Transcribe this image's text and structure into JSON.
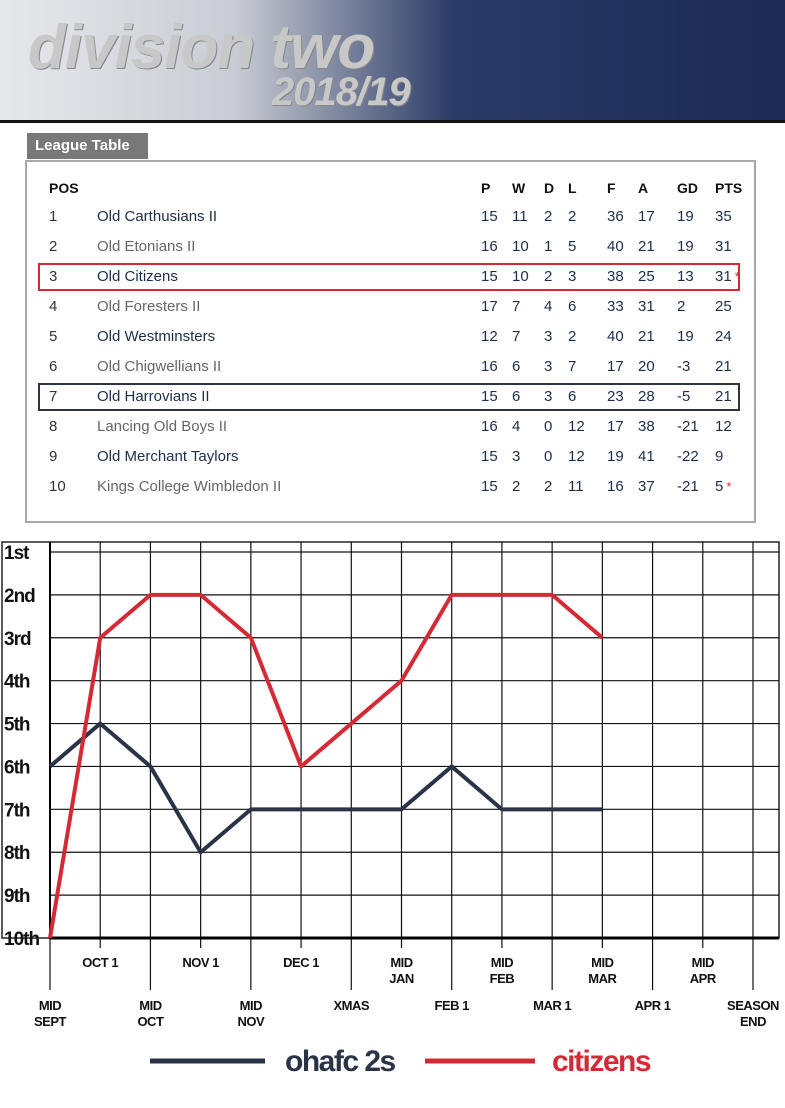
{
  "header": {
    "title": "division two",
    "season": "2018/19"
  },
  "table": {
    "tab": "League Table",
    "columns": [
      "POS",
      "P",
      "W",
      "D",
      "L",
      "F",
      "A",
      "GD",
      "PTS"
    ],
    "rows": [
      {
        "cells": [
          1,
          "Old Carthusians II",
          15,
          11,
          2,
          2,
          36,
          17,
          19,
          35
        ]
      },
      {
        "cells": [
          2,
          "Old Etonians II",
          16,
          10,
          1,
          5,
          40,
          21,
          19,
          31
        ]
      },
      {
        "cells": [
          3,
          "Old Citizens",
          15,
          10,
          2,
          3,
          38,
          25,
          13,
          31
        ],
        "note": "*",
        "highlight": "#d42a35"
      },
      {
        "cells": [
          4,
          "Old Foresters II",
          17,
          7,
          4,
          6,
          33,
          31,
          2,
          25
        ]
      },
      {
        "cells": [
          5,
          "Old Westminsters",
          12,
          7,
          3,
          2,
          40,
          21,
          19,
          24
        ]
      },
      {
        "cells": [
          6,
          "Old Chigwellians II",
          16,
          6,
          3,
          7,
          17,
          20,
          -3,
          21
        ]
      },
      {
        "cells": [
          7,
          "Old Harrovians II",
          15,
          6,
          3,
          6,
          23,
          28,
          -5,
          21
        ],
        "highlight": "#2b3347"
      },
      {
        "cells": [
          8,
          "Lancing Old Boys II",
          16,
          4,
          0,
          12,
          17,
          38,
          -21,
          12
        ]
      },
      {
        "cells": [
          9,
          "Old Merchant Taylors",
          15,
          3,
          0,
          12,
          19,
          41,
          -22,
          9
        ]
      },
      {
        "cells": [
          10,
          "Kings College Wimbledon II",
          15,
          2,
          2,
          11,
          16,
          37,
          -21,
          5
        ],
        "note": "*"
      }
    ]
  },
  "chart_data": {
    "type": "line",
    "categories": [
      "MID\nSEPT",
      "OCT 1",
      "MID\nOCT",
      "NOV 1",
      "MID\nNOV",
      "DEC 1",
      "XMAS",
      "MID\nJAN",
      "FEB 1",
      "MID\nFEB",
      "MAR 1",
      "MID\nMAR",
      "APR 1",
      "MID\nAPR",
      "SEASON\nEND"
    ],
    "series": [
      {
        "name": "ohafc 2s",
        "color": "#2b3347",
        "values": [
          6,
          5,
          6,
          8,
          7,
          7,
          7,
          7,
          6,
          7,
          7,
          7,
          null,
          null,
          null
        ]
      },
      {
        "name": "citizens",
        "color": "#d42a35",
        "values": [
          10,
          3,
          2,
          2,
          3,
          6,
          5,
          4,
          2,
          2,
          2,
          3,
          null,
          null,
          null
        ]
      }
    ],
    "ylim": [
      1,
      10
    ],
    "y_inverted": true,
    "yticks": [
      {
        "value": 1,
        "label": "1st"
      },
      {
        "value": 2,
        "label": "2nd"
      },
      {
        "value": 3,
        "label": "3rd"
      },
      {
        "value": 4,
        "label": "4th"
      },
      {
        "value": 5,
        "label": "5th"
      },
      {
        "value": 6,
        "label": "6th"
      },
      {
        "value": 7,
        "label": "7th"
      },
      {
        "value": 8,
        "label": "8th"
      },
      {
        "value": 9,
        "label": "9th"
      },
      {
        "value": 10,
        "label": "10th"
      }
    ],
    "grid": true
  }
}
